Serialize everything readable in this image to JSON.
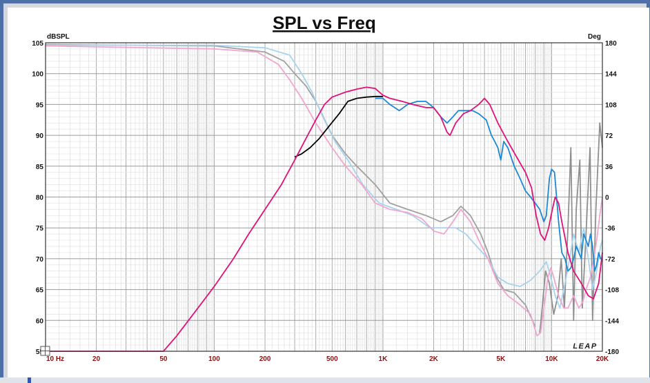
{
  "chart_data": {
    "type": "line",
    "title": "SPL vs Freq",
    "ylabel_left": "dBSPL",
    "ylabel_right": "Deg",
    "x_scale": "log",
    "xlim": [
      10,
      20000
    ],
    "ylim_left": [
      55,
      105
    ],
    "ylim_right": [
      -180,
      180
    ],
    "x_ticks": [
      {
        "value": 10,
        "label": "10 Hz"
      },
      {
        "value": 20,
        "label": "20"
      },
      {
        "value": 50,
        "label": "50"
      },
      {
        "value": 100,
        "label": "100"
      },
      {
        "value": 200,
        "label": "200"
      },
      {
        "value": 500,
        "label": "500"
      },
      {
        "value": 1000,
        "label": "1K"
      },
      {
        "value": 2000,
        "label": "2K"
      },
      {
        "value": 5000,
        "label": "5K"
      },
      {
        "value": 10000,
        "label": "10K"
      },
      {
        "value": 20000,
        "label": "20K"
      }
    ],
    "y_ticks_left": [
      105,
      100,
      95,
      90,
      85,
      80,
      75,
      70,
      65,
      60,
      55
    ],
    "y_ticks_right": [
      180,
      144,
      108,
      72,
      36,
      0,
      -36,
      -72,
      -108,
      -144,
      -180
    ],
    "grid": true,
    "watermark": "LEAP",
    "series": [
      {
        "color": "#a0a0a0",
        "axis": "left",
        "points": [
          [
            10,
            104.7
          ],
          [
            100,
            104.5
          ],
          [
            200,
            103.5
          ],
          [
            260,
            102
          ],
          [
            300,
            100
          ],
          [
            350,
            98
          ],
          [
            400,
            95.5
          ],
          [
            500,
            90
          ],
          [
            600,
            87
          ],
          [
            700,
            85
          ],
          [
            900,
            82
          ],
          [
            1100,
            79
          ],
          [
            1400,
            78
          ],
          [
            1800,
            77
          ],
          [
            2200,
            76
          ],
          [
            2600,
            77
          ],
          [
            2900,
            78.5
          ],
          [
            3300,
            77
          ],
          [
            3800,
            74
          ],
          [
            4200,
            71
          ],
          [
            4600,
            67.5
          ],
          [
            5200,
            65
          ],
          [
            6000,
            64.5
          ],
          [
            7000,
            62.5
          ],
          [
            8000,
            59
          ]
        ]
      },
      {
        "color": "#8f8f8f",
        "axis": "left",
        "points": [
          [
            8500,
            58
          ],
          [
            8800,
            62
          ],
          [
            9200,
            68
          ],
          [
            9700,
            66
          ],
          [
            10300,
            61
          ],
          [
            10900,
            64
          ],
          [
            11400,
            70
          ],
          [
            11900,
            62
          ],
          [
            12500,
            75
          ],
          [
            13000,
            88
          ],
          [
            13500,
            60
          ],
          [
            14000,
            78
          ],
          [
            14700,
            86
          ],
          [
            15200,
            62
          ],
          [
            16000,
            74
          ],
          [
            16900,
            88
          ],
          [
            17500,
            60
          ],
          [
            18300,
            78
          ],
          [
            19300,
            92
          ],
          [
            20000,
            88
          ]
        ]
      },
      {
        "color": "#a8d2ee",
        "axis": "left",
        "points": [
          [
            10,
            104.6
          ],
          [
            100,
            104.6
          ],
          [
            200,
            104.2
          ],
          [
            280,
            103
          ],
          [
            330,
            100
          ],
          [
            380,
            97
          ],
          [
            440,
            93
          ],
          [
            520,
            89
          ],
          [
            620,
            86
          ],
          [
            760,
            82
          ],
          [
            950,
            79
          ],
          [
            1200,
            78
          ],
          [
            1500,
            77
          ],
          [
            1900,
            75
          ],
          [
            2300,
            75
          ],
          [
            2700,
            75
          ],
          [
            3100,
            74
          ],
          [
            3600,
            72
          ],
          [
            4200,
            70
          ],
          [
            4800,
            67
          ],
          [
            5500,
            66
          ],
          [
            6500,
            65.5
          ],
          [
            7500,
            66.5
          ],
          [
            8500,
            68
          ],
          [
            9300,
            69.5
          ],
          [
            9800,
            67.5
          ],
          [
            10500,
            64
          ],
          [
            11200,
            62
          ],
          [
            12000,
            66
          ],
          [
            12800,
            70
          ],
          [
            13500,
            74
          ],
          [
            14500,
            71
          ],
          [
            15500,
            75
          ],
          [
            16500,
            70
          ],
          [
            17500,
            65
          ],
          [
            18500,
            68
          ],
          [
            19500,
            72
          ],
          [
            20000,
            73
          ]
        ]
      },
      {
        "color": "#f0a6ce",
        "axis": "left",
        "points": [
          [
            10,
            104.5
          ],
          [
            100,
            104
          ],
          [
            180,
            103.5
          ],
          [
            240,
            101.5
          ],
          [
            280,
            99
          ],
          [
            330,
            96
          ],
          [
            400,
            92
          ],
          [
            500,
            88
          ],
          [
            600,
            85
          ],
          [
            750,
            82
          ],
          [
            900,
            79
          ],
          [
            1100,
            78
          ],
          [
            1400,
            77.5
          ],
          [
            1700,
            76.5
          ],
          [
            2000,
            74.5
          ],
          [
            2300,
            74
          ],
          [
            2600,
            76
          ],
          [
            2900,
            78
          ],
          [
            3300,
            76
          ],
          [
            3700,
            73
          ],
          [
            4200,
            70
          ],
          [
            4800,
            66
          ],
          [
            5500,
            64
          ],
          [
            6500,
            62.5
          ],
          [
            7500,
            61
          ],
          [
            8200,
            57.5
          ],
          [
            8600,
            58
          ],
          [
            9100,
            63
          ],
          [
            9500,
            67
          ],
          [
            9900,
            68.5
          ],
          [
            10300,
            67
          ],
          [
            11000,
            64
          ],
          [
            11800,
            62
          ],
          [
            12500,
            62
          ],
          [
            13500,
            64
          ],
          [
            14500,
            62
          ],
          [
            15300,
            63
          ],
          [
            16000,
            65
          ],
          [
            17000,
            67
          ],
          [
            17800,
            70
          ],
          [
            18500,
            73
          ],
          [
            19300,
            77
          ],
          [
            20000,
            80
          ]
        ]
      },
      {
        "color": "#000000",
        "axis": "left",
        "points": [
          [
            300,
            86.5
          ],
          [
            330,
            87
          ],
          [
            370,
            88
          ],
          [
            420,
            89.5
          ],
          [
            480,
            91.5
          ],
          [
            550,
            93.5
          ],
          [
            620,
            95.5
          ],
          [
            700,
            96
          ],
          [
            800,
            96.2
          ],
          [
            900,
            96.3
          ],
          [
            1000,
            96.3
          ]
        ]
      },
      {
        "color": "#1a88d4",
        "axis": "left",
        "points": [
          [
            900,
            96
          ],
          [
            1000,
            96
          ],
          [
            1100,
            95
          ],
          [
            1250,
            94
          ],
          [
            1400,
            95
          ],
          [
            1600,
            95.5
          ],
          [
            1800,
            95.5
          ],
          [
            2000,
            94.5
          ],
          [
            2200,
            93
          ],
          [
            2400,
            92
          ],
          [
            2600,
            93
          ],
          [
            2800,
            94
          ],
          [
            3100,
            94
          ],
          [
            3400,
            94
          ],
          [
            3700,
            93.5
          ],
          [
            4100,
            92.5
          ],
          [
            4400,
            90
          ],
          [
            4600,
            89
          ],
          [
            4800,
            88
          ],
          [
            5000,
            86
          ],
          [
            5200,
            89
          ],
          [
            5500,
            88
          ],
          [
            6000,
            85
          ],
          [
            6500,
            83
          ],
          [
            7000,
            81
          ],
          [
            7500,
            80
          ],
          [
            8000,
            79
          ],
          [
            8500,
            78
          ],
          [
            9000,
            76
          ],
          [
            9300,
            77
          ],
          [
            9700,
            83
          ],
          [
            10000,
            84.5
          ],
          [
            10400,
            84
          ],
          [
            10700,
            80
          ],
          [
            11000,
            76
          ],
          [
            11500,
            71
          ],
          [
            12000,
            70
          ],
          [
            12500,
            68
          ],
          [
            13000,
            68.5
          ],
          [
            13500,
            70
          ],
          [
            14000,
            72
          ],
          [
            14500,
            71
          ],
          [
            15000,
            70
          ],
          [
            15500,
            74
          ],
          [
            16000,
            73
          ],
          [
            16500,
            72
          ],
          [
            17000,
            74
          ],
          [
            17500,
            72
          ],
          [
            18000,
            68
          ],
          [
            18500,
            69
          ],
          [
            19000,
            71
          ],
          [
            19500,
            70
          ],
          [
            20000,
            70
          ]
        ]
      },
      {
        "color": "#e0107a",
        "axis": "left",
        "points": [
          [
            10,
            55
          ],
          [
            50,
            55
          ],
          [
            60,
            57.5
          ],
          [
            80,
            62
          ],
          [
            100,
            65.5
          ],
          [
            130,
            70
          ],
          [
            160,
            74
          ],
          [
            200,
            78
          ],
          [
            250,
            82
          ],
          [
            300,
            86
          ],
          [
            350,
            89.5
          ],
          [
            400,
            92.5
          ],
          [
            450,
            95
          ],
          [
            500,
            96.2
          ],
          [
            600,
            97
          ],
          [
            700,
            97.5
          ],
          [
            800,
            97.8
          ],
          [
            900,
            97.6
          ],
          [
            1000,
            96.5
          ],
          [
            1100,
            96
          ],
          [
            1300,
            95.5
          ],
          [
            1500,
            95
          ],
          [
            1800,
            94.5
          ],
          [
            2000,
            94.5
          ],
          [
            2200,
            93
          ],
          [
            2400,
            90.5
          ],
          [
            2500,
            90
          ],
          [
            2700,
            92
          ],
          [
            3000,
            93.5
          ],
          [
            3300,
            94
          ],
          [
            3700,
            95
          ],
          [
            4000,
            96
          ],
          [
            4300,
            95
          ],
          [
            4800,
            92
          ],
          [
            5500,
            89
          ],
          [
            6200,
            86.5
          ],
          [
            7000,
            84
          ],
          [
            7600,
            81.5
          ],
          [
            8100,
            77
          ],
          [
            8600,
            74
          ],
          [
            9100,
            73
          ],
          [
            9600,
            75
          ],
          [
            10100,
            78
          ],
          [
            10500,
            80
          ],
          [
            11000,
            79
          ],
          [
            11500,
            76
          ],
          [
            12500,
            71
          ],
          [
            13500,
            68
          ],
          [
            15000,
            66
          ],
          [
            16500,
            64
          ],
          [
            17700,
            63.5
          ],
          [
            19000,
            66
          ],
          [
            20000,
            71
          ]
        ]
      }
    ]
  }
}
